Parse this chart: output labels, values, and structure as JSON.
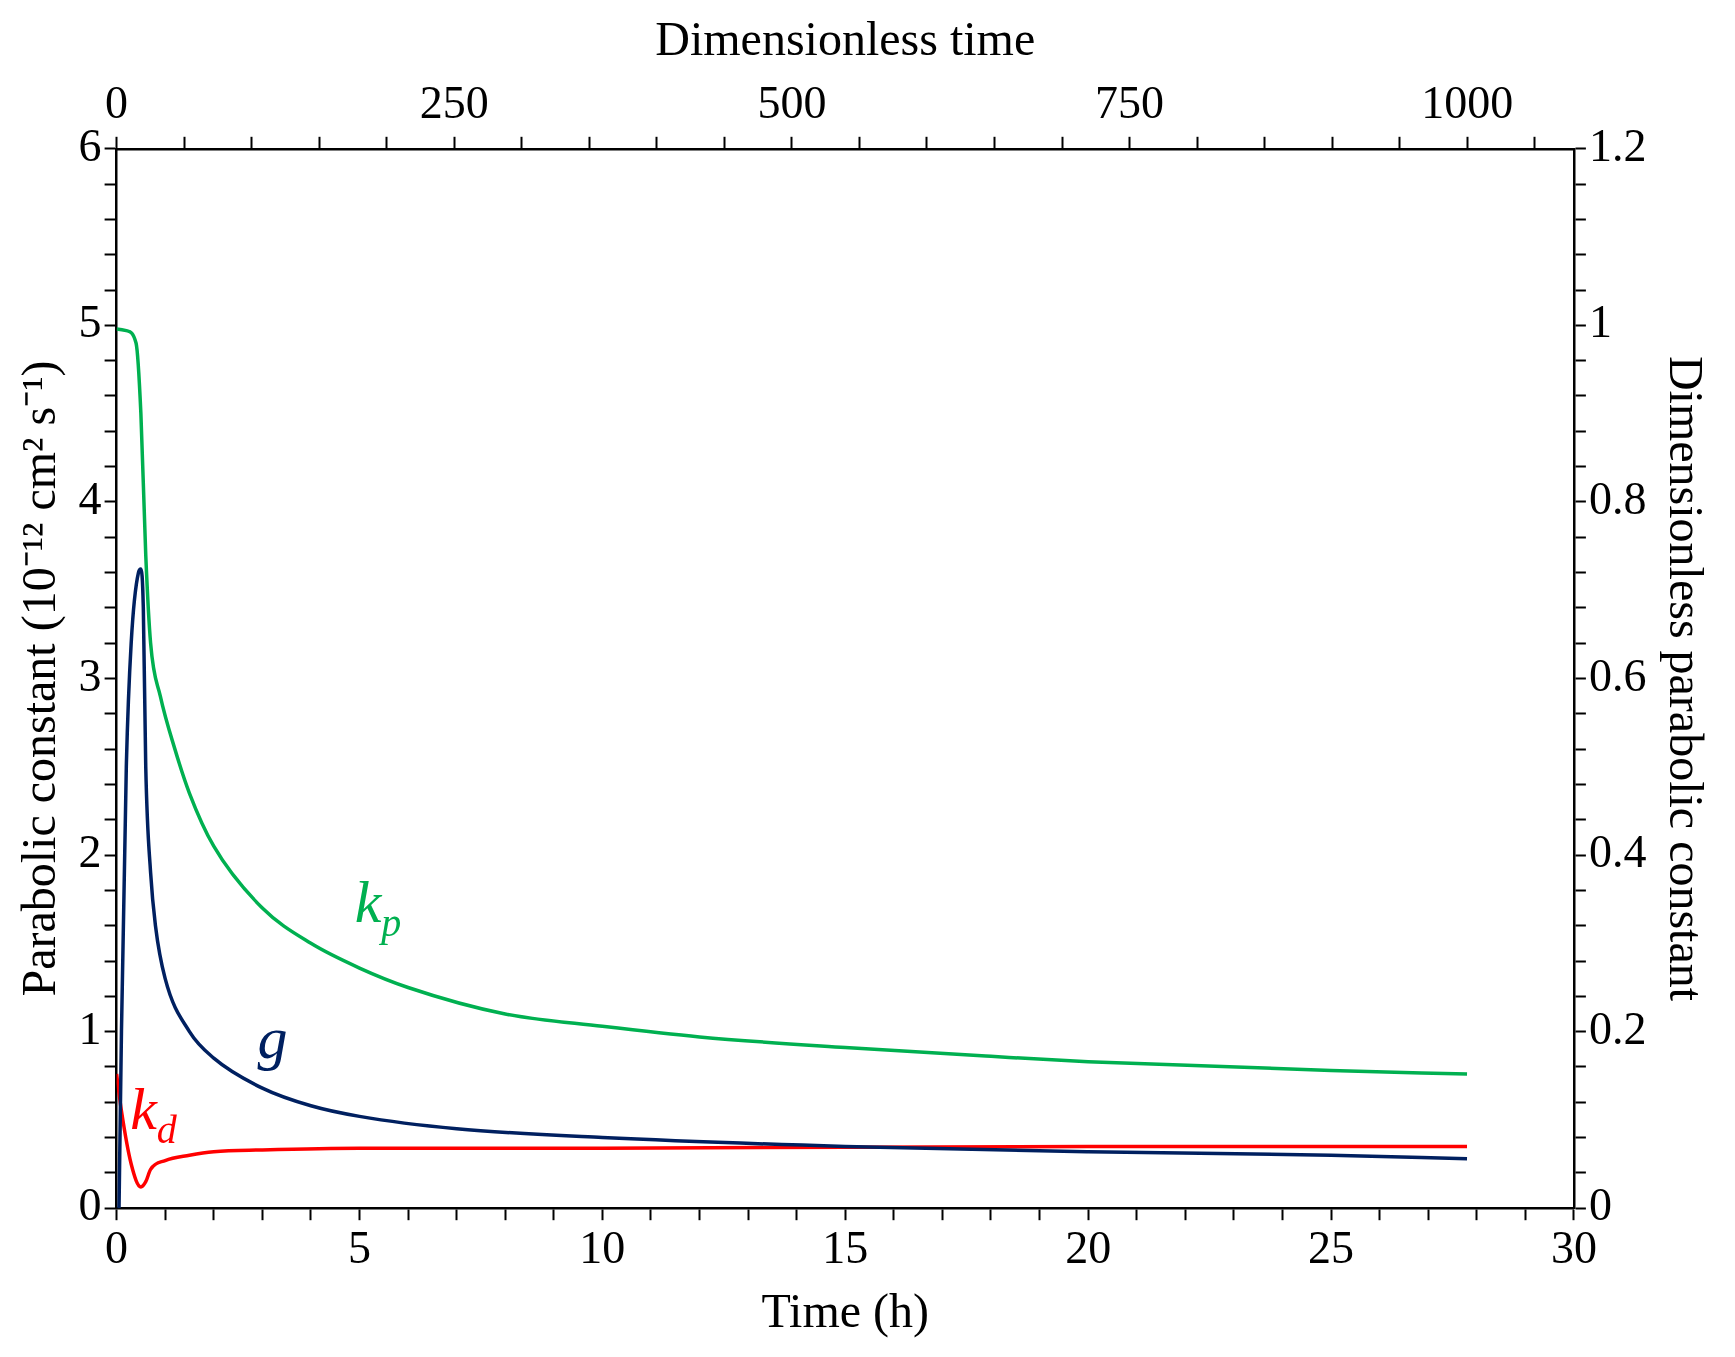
{
  "chart_data": {
    "type": "line",
    "xlabel": "Time (h)",
    "ylabel": "Parabolic constant (10⁻¹² cm² s⁻¹)",
    "y2label": "Dimensionless parabolic constant",
    "x2label": "Dimensionless time",
    "xlim": [
      0,
      30
    ],
    "ylim": [
      0,
      6
    ],
    "y2lim": [
      0,
      1.2
    ],
    "x2lim": [
      0,
      1079
    ],
    "xticks": [
      0,
      {
        "value": 1,
        "label": null
      },
      {
        "value": 2,
        "label": null
      },
      {
        "value": 3,
        "label": null
      },
      {
        "value": 4,
        "label": null
      },
      5,
      {
        "value": 6,
        "label": null
      },
      {
        "value": 7,
        "label": null
      },
      {
        "value": 8,
        "label": null
      },
      {
        "value": 9,
        "label": null
      },
      10,
      {
        "value": 11,
        "label": null
      },
      {
        "value": 12,
        "label": null
      },
      {
        "value": 13,
        "label": null
      },
      {
        "value": 14,
        "label": null
      },
      15,
      {
        "value": 16,
        "label": null
      },
      {
        "value": 17,
        "label": null
      },
      {
        "value": 18,
        "label": null
      },
      {
        "value": 19,
        "label": null
      },
      20,
      {
        "value": 21,
        "label": null
      },
      {
        "value": 22,
        "label": null
      },
      {
        "value": 23,
        "label": null
      },
      {
        "value": 24,
        "label": null
      },
      25,
      {
        "value": 26,
        "label": null
      },
      {
        "value": 27,
        "label": null
      },
      {
        "value": 28,
        "label": null
      },
      {
        "value": 29,
        "label": null
      },
      30
    ],
    "yticks": [
      0,
      {
        "value": 0.2,
        "label": null
      },
      {
        "value": 0.4,
        "label": null
      },
      {
        "value": 0.6,
        "label": null
      },
      {
        "value": 0.8,
        "label": null
      },
      1,
      {
        "value": 1.2,
        "label": null
      },
      {
        "value": 1.4,
        "label": null
      },
      {
        "value": 1.6,
        "label": null
      },
      {
        "value": 1.8,
        "label": null
      },
      2,
      {
        "value": 2.2,
        "label": null
      },
      {
        "value": 2.4,
        "label": null
      },
      {
        "value": 2.6,
        "label": null
      },
      {
        "value": 2.8,
        "label": null
      },
      3,
      {
        "value": 3.2,
        "label": null
      },
      {
        "value": 3.4,
        "label": null
      },
      {
        "value": 3.6,
        "label": null
      },
      {
        "value": 3.8,
        "label": null
      },
      4,
      {
        "value": 4.2,
        "label": null
      },
      {
        "value": 4.4,
        "label": null
      },
      {
        "value": 4.6,
        "label": null
      },
      {
        "value": 4.8,
        "label": null
      },
      5,
      {
        "value": 5.2,
        "label": null
      },
      {
        "value": 5.4,
        "label": null
      },
      {
        "value": 5.6,
        "label": null
      },
      {
        "value": 5.8,
        "label": null
      },
      6
    ],
    "y2ticks": [
      0,
      {
        "value": 0.04,
        "label": null
      },
      {
        "value": 0.08,
        "label": null
      },
      {
        "value": 0.12,
        "label": null
      },
      {
        "value": 0.16,
        "label": null
      },
      0.2,
      {
        "value": 0.24,
        "label": null
      },
      {
        "value": 0.28,
        "label": null
      },
      {
        "value": 0.32,
        "label": null
      },
      {
        "value": 0.36,
        "label": null
      },
      0.4,
      {
        "value": 0.44,
        "label": null
      },
      {
        "value": 0.48,
        "label": null
      },
      {
        "value": 0.52,
        "label": null
      },
      {
        "value": 0.56,
        "label": null
      },
      0.6,
      {
        "value": 0.64,
        "label": null
      },
      {
        "value": 0.68,
        "label": null
      },
      {
        "value": 0.72,
        "label": null
      },
      {
        "value": 0.76,
        "label": null
      },
      0.8,
      {
        "value": 0.84,
        "label": null
      },
      {
        "value": 0.88,
        "label": null
      },
      {
        "value": 0.92,
        "label": null
      },
      {
        "value": 0.96,
        "label": null
      },
      1,
      {
        "value": 1.04,
        "label": null
      },
      {
        "value": 1.08,
        "label": null
      },
      {
        "value": 1.12,
        "label": null
      },
      {
        "value": 1.16,
        "label": null
      },
      1.2
    ],
    "x2ticks": [
      0,
      {
        "value": 50,
        "label": null
      },
      {
        "value": 100,
        "label": null
      },
      {
        "value": 150,
        "label": null
      },
      {
        "value": 200,
        "label": null
      },
      250,
      {
        "value": 300,
        "label": null
      },
      {
        "value": 350,
        "label": null
      },
      {
        "value": 400,
        "label": null
      },
      {
        "value": 450,
        "label": null
      },
      500,
      {
        "value": 550,
        "label": null
      },
      {
        "value": 600,
        "label": null
      },
      {
        "value": 650,
        "label": null
      },
      {
        "value": 700,
        "label": null
      },
      750,
      {
        "value": 800,
        "label": null
      },
      {
        "value": 850,
        "label": null
      },
      {
        "value": 900,
        "label": null
      },
      {
        "value": 950,
        "label": null
      },
      1000,
      {
        "value": 1050,
        "label": null
      }
    ],
    "grid": false,
    "legend": false,
    "marker": "none",
    "line_style": "solid",
    "series": [
      {
        "name": "k$_{p}$",
        "color": "#00b050",
        "x": [
          0,
          0.2,
          0.4,
          0.5,
          0.6,
          0.7,
          0.9,
          1.2,
          1.5,
          2,
          3,
          4,
          5,
          6,
          8,
          10,
          12,
          15,
          18,
          20,
          25,
          27.8
        ],
        "values": [
          4.98,
          4.97,
          4.9,
          4.5,
          3.7,
          3.2,
          2.9,
          2.6,
          2.35,
          2.05,
          1.7,
          1.5,
          1.36,
          1.25,
          1.1,
          1.03,
          0.97,
          0.91,
          0.86,
          0.83,
          0.78,
          0.76
        ]
      },
      {
        "name": "g",
        "color": "#002060",
        "x": [
          0.05,
          0.1,
          0.2,
          0.3,
          0.45,
          0.5,
          0.55,
          0.6,
          0.7,
          0.8,
          1,
          1.5,
          2,
          3,
          4,
          5,
          7,
          10,
          15,
          20,
          25,
          27.8
        ],
        "values": [
          0,
          1.0,
          2.5,
          3.2,
          3.6,
          3.62,
          3.4,
          2.5,
          1.9,
          1.6,
          1.3,
          1.0,
          0.85,
          0.68,
          0.58,
          0.52,
          0.45,
          0.4,
          0.35,
          0.32,
          0.3,
          0.28
        ]
      },
      {
        "name": "k$_{d}$",
        "color": "#ff0000",
        "x": [
          0,
          0.1,
          0.3,
          0.5,
          0.6,
          0.7,
          1,
          1.5,
          2,
          3,
          5,
          10,
          20,
          27.8
        ],
        "values": [
          0.76,
          0.55,
          0.25,
          0.12,
          0.15,
          0.22,
          0.27,
          0.3,
          0.32,
          0.33,
          0.34,
          0.34,
          0.35,
          0.35
        ]
      }
    ]
  }
}
